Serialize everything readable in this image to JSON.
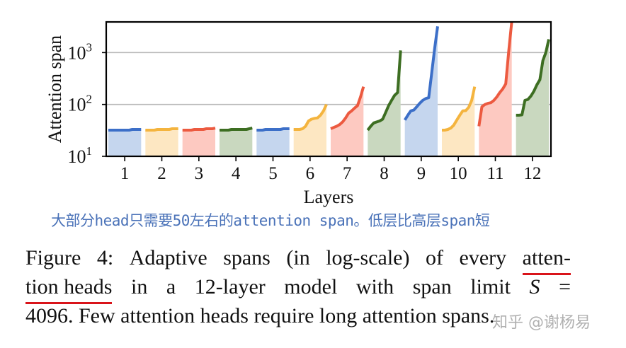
{
  "chart_data": {
    "type": "area",
    "title": "",
    "xlabel": "Layers",
    "ylabel": "Attention span",
    "yscale": "log",
    "ylim": [
      10,
      3900
    ],
    "yticks": [
      {
        "value": 10,
        "label": "10^1"
      },
      {
        "value": 100,
        "label": "10^2"
      },
      {
        "value": 1000,
        "label": "10^3"
      }
    ],
    "grid": {
      "horizontal": true,
      "at": [
        100,
        1000
      ]
    },
    "categories": [
      "1",
      "2",
      "3",
      "4",
      "5",
      "6",
      "7",
      "8",
      "9",
      "10",
      "11",
      "12"
    ],
    "colors": {
      "blue": {
        "line": "#3c6fc8",
        "fill": "#c5d6ee"
      },
      "orange": {
        "line": "#f4b43e",
        "fill": "#fde7c2"
      },
      "red": {
        "line": "#ec5a40",
        "fill": "#fdc9c1"
      },
      "green": {
        "line": "#3d6e22",
        "fill": "#c9d8bf"
      }
    },
    "series": [
      {
        "name": "Layer 1",
        "color": "blue",
        "values": [
          32,
          32,
          32,
          32,
          32,
          32,
          32,
          32,
          33,
          33,
          33,
          33
        ]
      },
      {
        "name": "Layer 2",
        "color": "orange",
        "values": [
          32,
          32,
          32,
          32,
          33,
          33,
          33,
          33,
          33,
          34,
          34,
          34
        ]
      },
      {
        "name": "Layer 3",
        "color": "red",
        "values": [
          32,
          32,
          32,
          32,
          33,
          33,
          33,
          33,
          34,
          34,
          34,
          35
        ]
      },
      {
        "name": "Layer 4",
        "color": "green",
        "values": [
          32,
          32,
          32,
          32,
          33,
          33,
          33,
          33,
          33,
          33,
          34,
          35
        ]
      },
      {
        "name": "Layer 5",
        "color": "blue",
        "values": [
          32,
          32,
          32,
          33,
          33,
          33,
          33,
          33,
          33,
          34,
          34,
          34
        ]
      },
      {
        "name": "Layer 6",
        "color": "orange",
        "values": [
          33,
          33,
          33,
          34,
          38,
          48,
          52,
          54,
          55,
          62,
          75,
          100
        ]
      },
      {
        "name": "Layer 7",
        "color": "red",
        "values": [
          34,
          36,
          38,
          41,
          46,
          55,
          68,
          75,
          85,
          95,
          140,
          220
        ]
      },
      {
        "name": "Layer 8",
        "color": "green",
        "values": [
          32,
          38,
          44,
          46,
          48,
          52,
          70,
          95,
          120,
          150,
          170,
          1100
        ]
      },
      {
        "name": "Layer 9",
        "color": "blue",
        "values": [
          50,
          62,
          75,
          78,
          90,
          105,
          120,
          130,
          135,
          400,
          1200,
          3200
        ]
      },
      {
        "name": "Layer 10",
        "color": "orange",
        "values": [
          32,
          32,
          33,
          35,
          40,
          50,
          62,
          75,
          76,
          88,
          120,
          220
        ]
      },
      {
        "name": "Layer 11",
        "color": "red",
        "values": [
          38,
          90,
          100,
          105,
          108,
          120,
          140,
          170,
          200,
          250,
          1100,
          4000
        ]
      },
      {
        "name": "Layer 12",
        "color": "green",
        "values": [
          62,
          62,
          63,
          120,
          125,
          145,
          180,
          240,
          300,
          700,
          1000,
          1800
        ]
      }
    ]
  },
  "note": {
    "text": "大部分head只需要50左右的attention span。低层比高层span短"
  },
  "caption": {
    "line1": [
      "Figure",
      "4:",
      "Adaptive",
      "spans",
      "(in",
      "log-scale)",
      "of",
      "every",
      "atten-"
    ],
    "line2": [
      "tion heads",
      "in",
      "a",
      "12-layer",
      "model",
      "with",
      "span",
      "limit",
      "S",
      "="
    ],
    "line3": "4096. Few attention heads require long attention spans."
  },
  "watermark": {
    "text": "知乎 @谢杨易"
  }
}
